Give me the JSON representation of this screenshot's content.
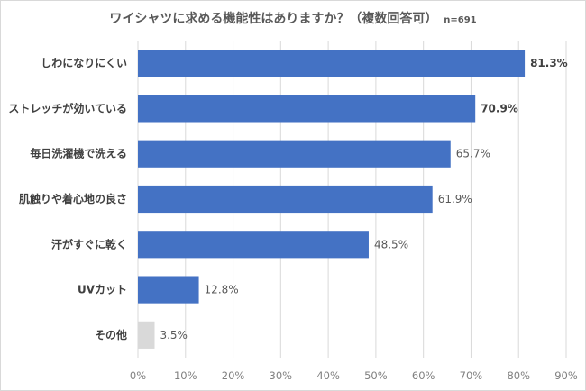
{
  "chart_data": {
    "type": "bar",
    "orientation": "horizontal",
    "title": "ワイシャツに求める機能性はありますか？（複数回答可）",
    "title_note": "n=691",
    "categories": [
      "しわになりにくい",
      "ストレッチが効いている",
      "毎日洗濯機で洗える",
      "肌触りや着心地の良さ",
      "汗がすぐに乾く",
      "UVカット",
      "その他"
    ],
    "values": [
      81.3,
      70.9,
      65.7,
      61.9,
      48.5,
      12.8,
      3.5
    ],
    "value_labels": [
      "81.3%",
      "70.9%",
      "65.7%",
      "61.9%",
      "48.5%",
      "12.8%",
      "3.5%"
    ],
    "bold_labels": [
      true,
      true,
      false,
      false,
      false,
      false,
      false
    ],
    "bar_colors": [
      "#4472c4",
      "#4472c4",
      "#4472c4",
      "#4472c4",
      "#4472c4",
      "#4472c4",
      "#d9d9d9"
    ],
    "xlim": [
      0,
      90
    ],
    "xticks": [
      0,
      10,
      20,
      30,
      40,
      50,
      60,
      70,
      80,
      90
    ],
    "xtick_labels": [
      "0%",
      "10%",
      "20%",
      "30%",
      "40%",
      "50%",
      "60%",
      "70%",
      "80%",
      "90%"
    ],
    "grid": true,
    "gridline_color": "#d9d9d9"
  }
}
